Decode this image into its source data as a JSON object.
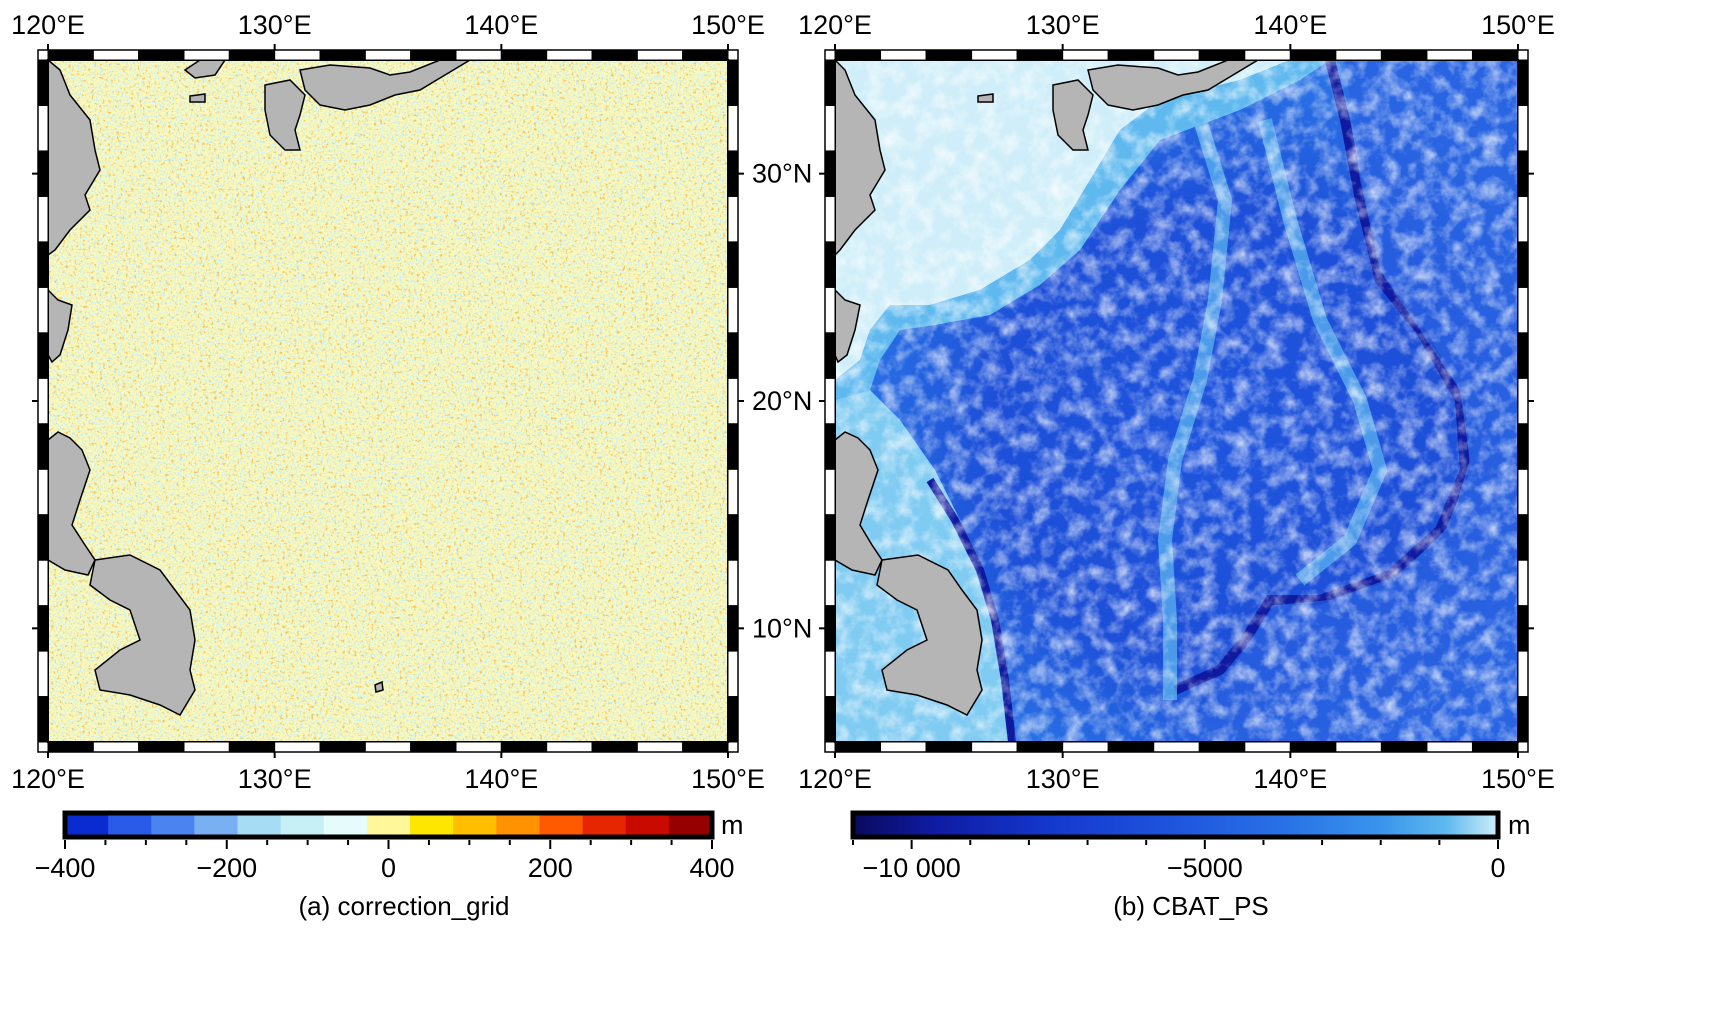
{
  "panels": [
    {
      "id": "a",
      "caption": "(a) correction_grid",
      "colorbar": {
        "unit": "m",
        "tick_labels": [
          "−400",
          "−200",
          "0",
          "200",
          "400"
        ],
        "ticks": [
          -400,
          -200,
          0,
          200,
          400
        ],
        "range": [
          -400,
          400
        ],
        "colors": [
          "#0a2bd0",
          "#2a5ae8",
          "#4b84f0",
          "#78b0f2",
          "#a6dcf4",
          "#c6f0f6",
          "#e6fbfb",
          "#fff79a",
          "#ffe600",
          "#ffbf00",
          "#ff9200",
          "#ff5a00",
          "#e62600",
          "#c80a00",
          "#960000"
        ]
      }
    },
    {
      "id": "b",
      "caption": "(b) CBAT_PS",
      "colorbar": {
        "unit": "m",
        "tick_labels": [
          "−10 000",
          "−5000",
          "0"
        ],
        "ticks": [
          -10000,
          -5000,
          0
        ],
        "range": [
          -11000,
          0
        ],
        "colors": [
          "#0a0a5c",
          "#0f1aa0",
          "#1437cc",
          "#1f55de",
          "#2a74e6",
          "#3a95ec",
          "#5fb9ef",
          "#9fd8f4",
          "#cfeef9"
        ]
      }
    }
  ],
  "map_axes": {
    "lon_labels": [
      "120°E",
      "130°E",
      "140°E",
      "150°E"
    ],
    "lon_values": [
      120,
      130,
      140,
      150
    ],
    "lat_labels": [
      "30°N",
      "20°N",
      "10°N"
    ],
    "lat_values": [
      30,
      20,
      10
    ],
    "lon_range": [
      120,
      150
    ],
    "lat_range": [
      5,
      35
    ]
  },
  "colors": {
    "land": "#b5b5b5",
    "coastline": "#000000",
    "correction_background": "#fbf8b8",
    "bathymetry_shallow": "#cfeef9",
    "bathymetry_deep": "#1437cc"
  }
}
